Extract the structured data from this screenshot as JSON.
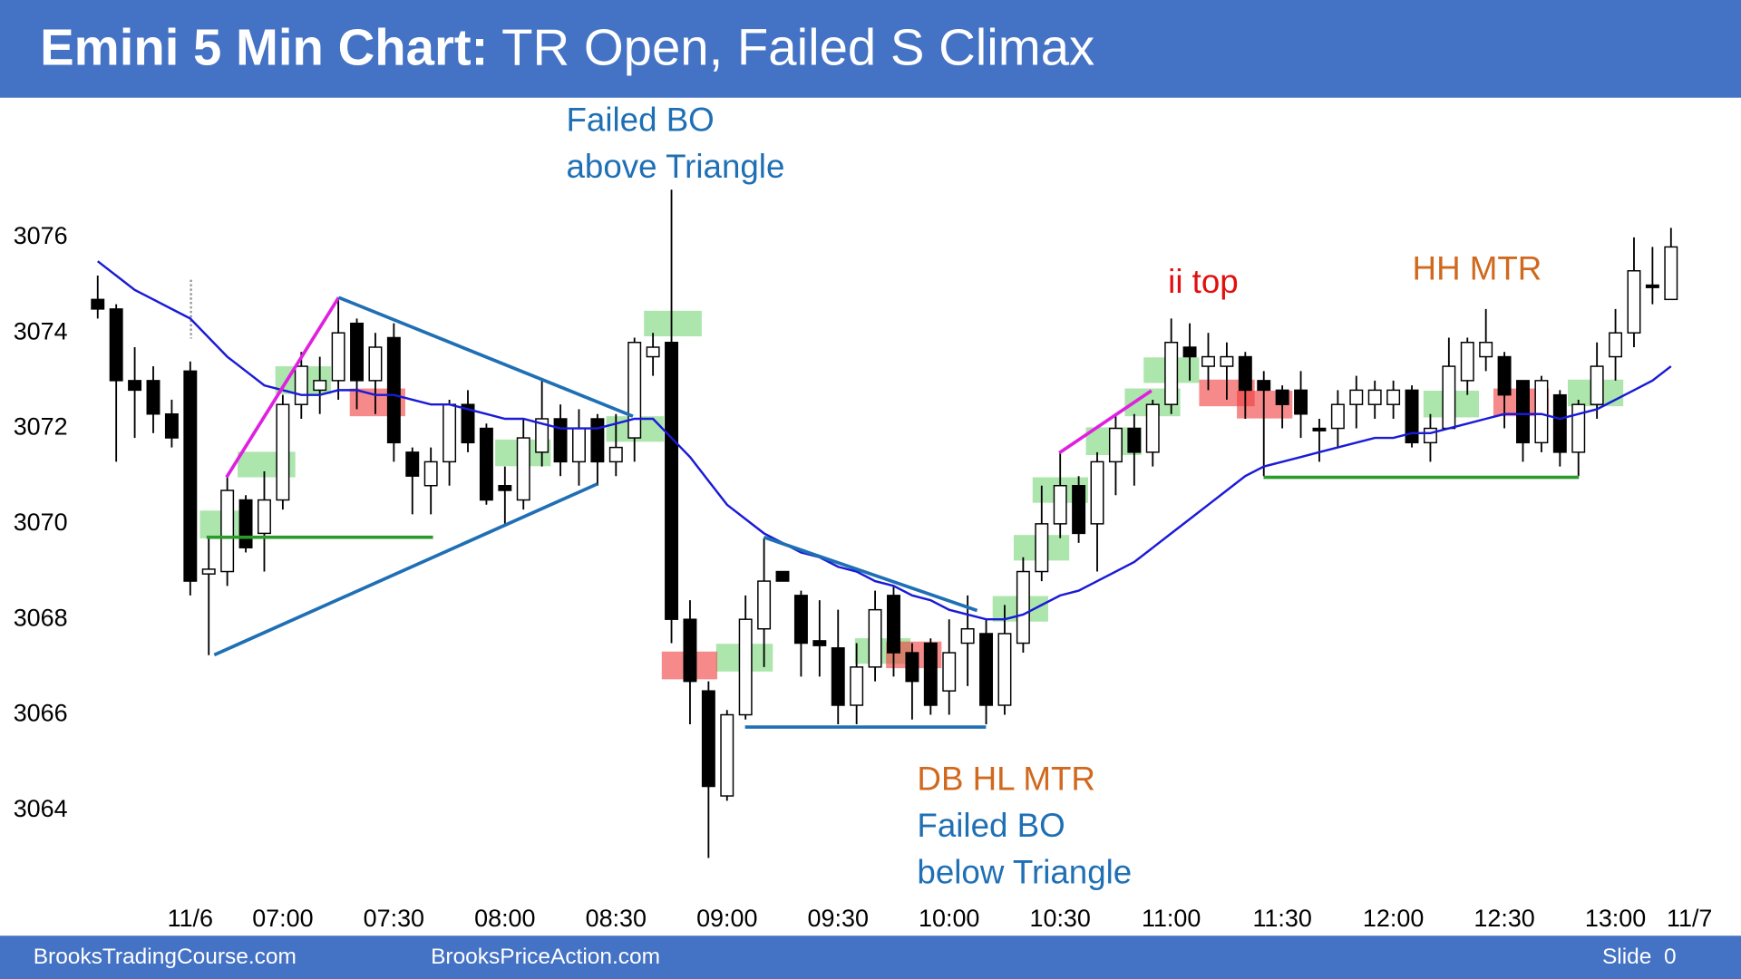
{
  "header": {
    "title_bold": "Emini 5 Min Chart:",
    "title_rest": "TR Open, Failed S Climax"
  },
  "chart_data": {
    "type": "candlestick",
    "categories": [
      null,
      null,
      null,
      null,
      null,
      "11/6",
      null,
      null,
      null,
      null,
      "07:00",
      null,
      null,
      null,
      null,
      null,
      "07:30",
      null,
      null,
      null,
      null,
      null,
      "08:00",
      null,
      null,
      null,
      null,
      null,
      "08:30",
      null,
      null,
      null,
      null,
      null,
      "09:00",
      null,
      null,
      null,
      null,
      null,
      "09:30",
      null,
      null,
      null,
      null,
      null,
      "10:00",
      null,
      null,
      null,
      null,
      null,
      "10:30",
      null,
      null,
      null,
      null,
      null,
      "11:00",
      null,
      null,
      null,
      null,
      null,
      "11:30",
      null,
      null,
      null,
      null,
      null,
      "12:00",
      null,
      null,
      null,
      null,
      null,
      "12:30",
      null,
      null,
      null,
      null,
      null,
      "13:00",
      null,
      null,
      null,
      "11/7"
    ],
    "open": [
      3074.7,
      3074.5,
      3073.0,
      3073.0,
      3072.3,
      3073.2,
      3068.95,
      3069.0,
      3070.5,
      3069.8,
      3070.5,
      3072.5,
      3072.8,
      3073.0,
      3074.2,
      3073.0,
      3073.9,
      3071.5,
      3070.8,
      3071.3,
      3072.5,
      3072.0,
      3070.8,
      3070.5,
      3071.5,
      3072.2,
      3071.3,
      3072.2,
      3071.3,
      3071.8,
      3073.5,
      3073.8,
      3068.0,
      3066.5,
      3064.3,
      3066.0,
      3067.8,
      3069.0,
      3068.5,
      3067.55,
      3067.4,
      3066.2,
      3067.0,
      3068.5,
      3067.3,
      3067.5,
      3066.5,
      3067.5,
      3067.7,
      3066.2,
      3067.5,
      3069.0,
      3070.0,
      3070.8,
      3070.0,
      3071.3,
      3072.0,
      3071.5,
      3072.5,
      3073.7,
      3073.3,
      3073.3,
      3073.5,
      3073.0,
      3072.8,
      3072.8,
      3072.0,
      3072.0,
      3072.5,
      3072.5,
      3072.5,
      3072.8,
      3071.7,
      3072.0,
      3073.0,
      3073.5,
      3073.5,
      3073.0,
      3071.7,
      3072.7,
      3071.5,
      3072.5,
      3073.5,
      3074.0,
      3075.0,
      3074.7,
      null
    ],
    "high": [
      3075.2,
      3074.6,
      3073.7,
      3073.3,
      3072.6,
      3073.4,
      3069.7,
      3071.0,
      3070.6,
      3071.1,
      3072.7,
      3073.6,
      3073.5,
      3074.7,
      3074.3,
      3074.0,
      3074.2,
      3071.6,
      3071.6,
      3072.6,
      3072.8,
      3072.1,
      3071.2,
      3072.2,
      3073.0,
      3072.5,
      3072.4,
      3072.3,
      3072.3,
      3073.9,
      3074.0,
      3077.0,
      3068.4,
      3066.7,
      3066.1,
      3068.5,
      3069.7,
      3069.0,
      3068.6,
      3068.4,
      3068.2,
      3067.5,
      3068.6,
      3068.7,
      3067.5,
      3067.6,
      3068.0,
      3068.5,
      3068.0,
      3068.3,
      3069.3,
      3070.8,
      3071.5,
      3071.0,
      3071.5,
      3072.3,
      3072.3,
      3072.6,
      3074.3,
      3074.2,
      3074.0,
      3073.8,
      3073.6,
      3073.2,
      3072.9,
      3073.2,
      3072.2,
      3072.8,
      3073.1,
      3073.0,
      3073.0,
      3072.9,
      3072.3,
      3073.9,
      3073.9,
      3074.5,
      3073.6,
      3073.0,
      3073.1,
      3072.8,
      3072.6,
      3073.8,
      3074.5,
      3076.0,
      3075.8,
      3076.2,
      null
    ],
    "low": [
      3074.3,
      3071.3,
      3071.8,
      3071.9,
      3071.6,
      3068.5,
      3067.25,
      3068.7,
      3069.4,
      3069.0,
      3070.3,
      3072.2,
      3072.3,
      3072.6,
      3072.4,
      3072.3,
      3071.3,
      3070.2,
      3070.2,
      3070.8,
      3071.5,
      3070.4,
      3070.0,
      3070.3,
      3071.2,
      3071.0,
      3070.8,
      3070.8,
      3071.0,
      3071.3,
      3073.1,
      3067.5,
      3065.8,
      3063.0,
      3064.2,
      3065.9,
      3067.0,
      3068.8,
      3066.8,
      3066.8,
      3065.8,
      3065.8,
      3066.7,
      3066.8,
      3065.9,
      3066.0,
      3066.0,
      3066.6,
      3065.8,
      3066.0,
      3067.3,
      3068.8,
      3069.7,
      3069.6,
      3069.0,
      3070.6,
      3070.8,
      3071.2,
      3072.3,
      3073.0,
      3072.8,
      3072.6,
      3072.2,
      3071.0,
      3072.0,
      3071.8,
      3071.3,
      3071.6,
      3072.0,
      3072.2,
      3072.2,
      3071.6,
      3071.3,
      3072.0,
      3072.7,
      3073.2,
      3072.0,
      3071.3,
      3071.5,
      3071.2,
      3071.0,
      3072.2,
      3073.0,
      3073.7,
      3074.6,
      3074.7,
      null
    ],
    "close": [
      3074.5,
      3073.0,
      3072.8,
      3072.3,
      3071.8,
      3068.8,
      3069.05,
      3070.7,
      3069.5,
      3070.5,
      3072.5,
      3073.3,
      3073.0,
      3074.0,
      3073.0,
      3073.7,
      3071.7,
      3071.0,
      3071.3,
      3072.5,
      3071.7,
      3070.5,
      3070.7,
      3071.8,
      3072.2,
      3071.3,
      3072.0,
      3071.3,
      3071.6,
      3073.8,
      3073.7,
      3068.0,
      3066.7,
      3064.5,
      3066.0,
      3068.0,
      3068.8,
      3068.8,
      3067.5,
      3067.45,
      3066.2,
      3067.0,
      3068.2,
      3067.3,
      3066.7,
      3066.2,
      3067.3,
      3067.8,
      3066.2,
      3067.7,
      3069.0,
      3070.0,
      3070.8,
      3069.8,
      3071.3,
      3072.0,
      3071.5,
      3072.5,
      3073.8,
      3073.5,
      3073.5,
      3073.5,
      3072.8,
      3072.8,
      3072.5,
      3072.3,
      3071.95,
      3072.5,
      3072.8,
      3072.8,
      3072.8,
      3071.7,
      3072.0,
      3073.3,
      3073.8,
      3073.8,
      3072.7,
      3071.7,
      3073.0,
      3071.5,
      3072.5,
      3073.3,
      3074.0,
      3075.3,
      3074.95,
      3075.8,
      null
    ],
    "up_color": "#ffffff",
    "down_color": "#000000",
    "ema": {
      "color": "#1a1ad8",
      "values": [
        3075.5,
        3075.2,
        3074.9,
        3074.7,
        3074.5,
        3074.3,
        3073.9,
        3073.5,
        3073.2,
        3072.9,
        3072.8,
        3072.7,
        3072.7,
        3072.8,
        3072.8,
        3072.7,
        3072.7,
        3072.6,
        3072.5,
        3072.5,
        3072.4,
        3072.3,
        3072.2,
        3072.2,
        3072.1,
        3072.0,
        3072.0,
        3072.0,
        3072.1,
        3072.2,
        3072.2,
        3071.8,
        3071.4,
        3070.9,
        3070.4,
        3070.1,
        3069.8,
        3069.6,
        3069.4,
        3069.3,
        3069.1,
        3069.0,
        3068.8,
        3068.7,
        3068.5,
        3068.4,
        3068.2,
        3068.1,
        3068.0,
        3068.0,
        3068.1,
        3068.3,
        3068.5,
        3068.6,
        3068.8,
        3069.0,
        3069.2,
        3069.5,
        3069.8,
        3070.1,
        3070.4,
        3070.7,
        3071.0,
        3071.2,
        3071.3,
        3071.4,
        3071.5,
        3071.6,
        3071.7,
        3071.8,
        3071.8,
        3071.9,
        3071.9,
        3072.0,
        3072.1,
        3072.2,
        3072.3,
        3072.3,
        3072.3,
        3072.2,
        3072.3,
        3072.4,
        3072.6,
        3072.8,
        3073.0,
        3073.3,
        null
      ]
    },
    "ylim": [
      3062.0,
      3078.88
    ],
    "yticks": [
      3064,
      3066,
      3068,
      3070,
      3072,
      3074,
      3076
    ],
    "annotations": [
      "Failed BO",
      "above Triangle",
      "ii top",
      "HH MTR",
      "DB HL MTR",
      "Failed BO",
      "below Triangle"
    ]
  },
  "footer": {
    "left": "BrooksTradingCourse.com",
    "middle": "BrooksPriceAction.com",
    "slide": "Slide  0"
  }
}
